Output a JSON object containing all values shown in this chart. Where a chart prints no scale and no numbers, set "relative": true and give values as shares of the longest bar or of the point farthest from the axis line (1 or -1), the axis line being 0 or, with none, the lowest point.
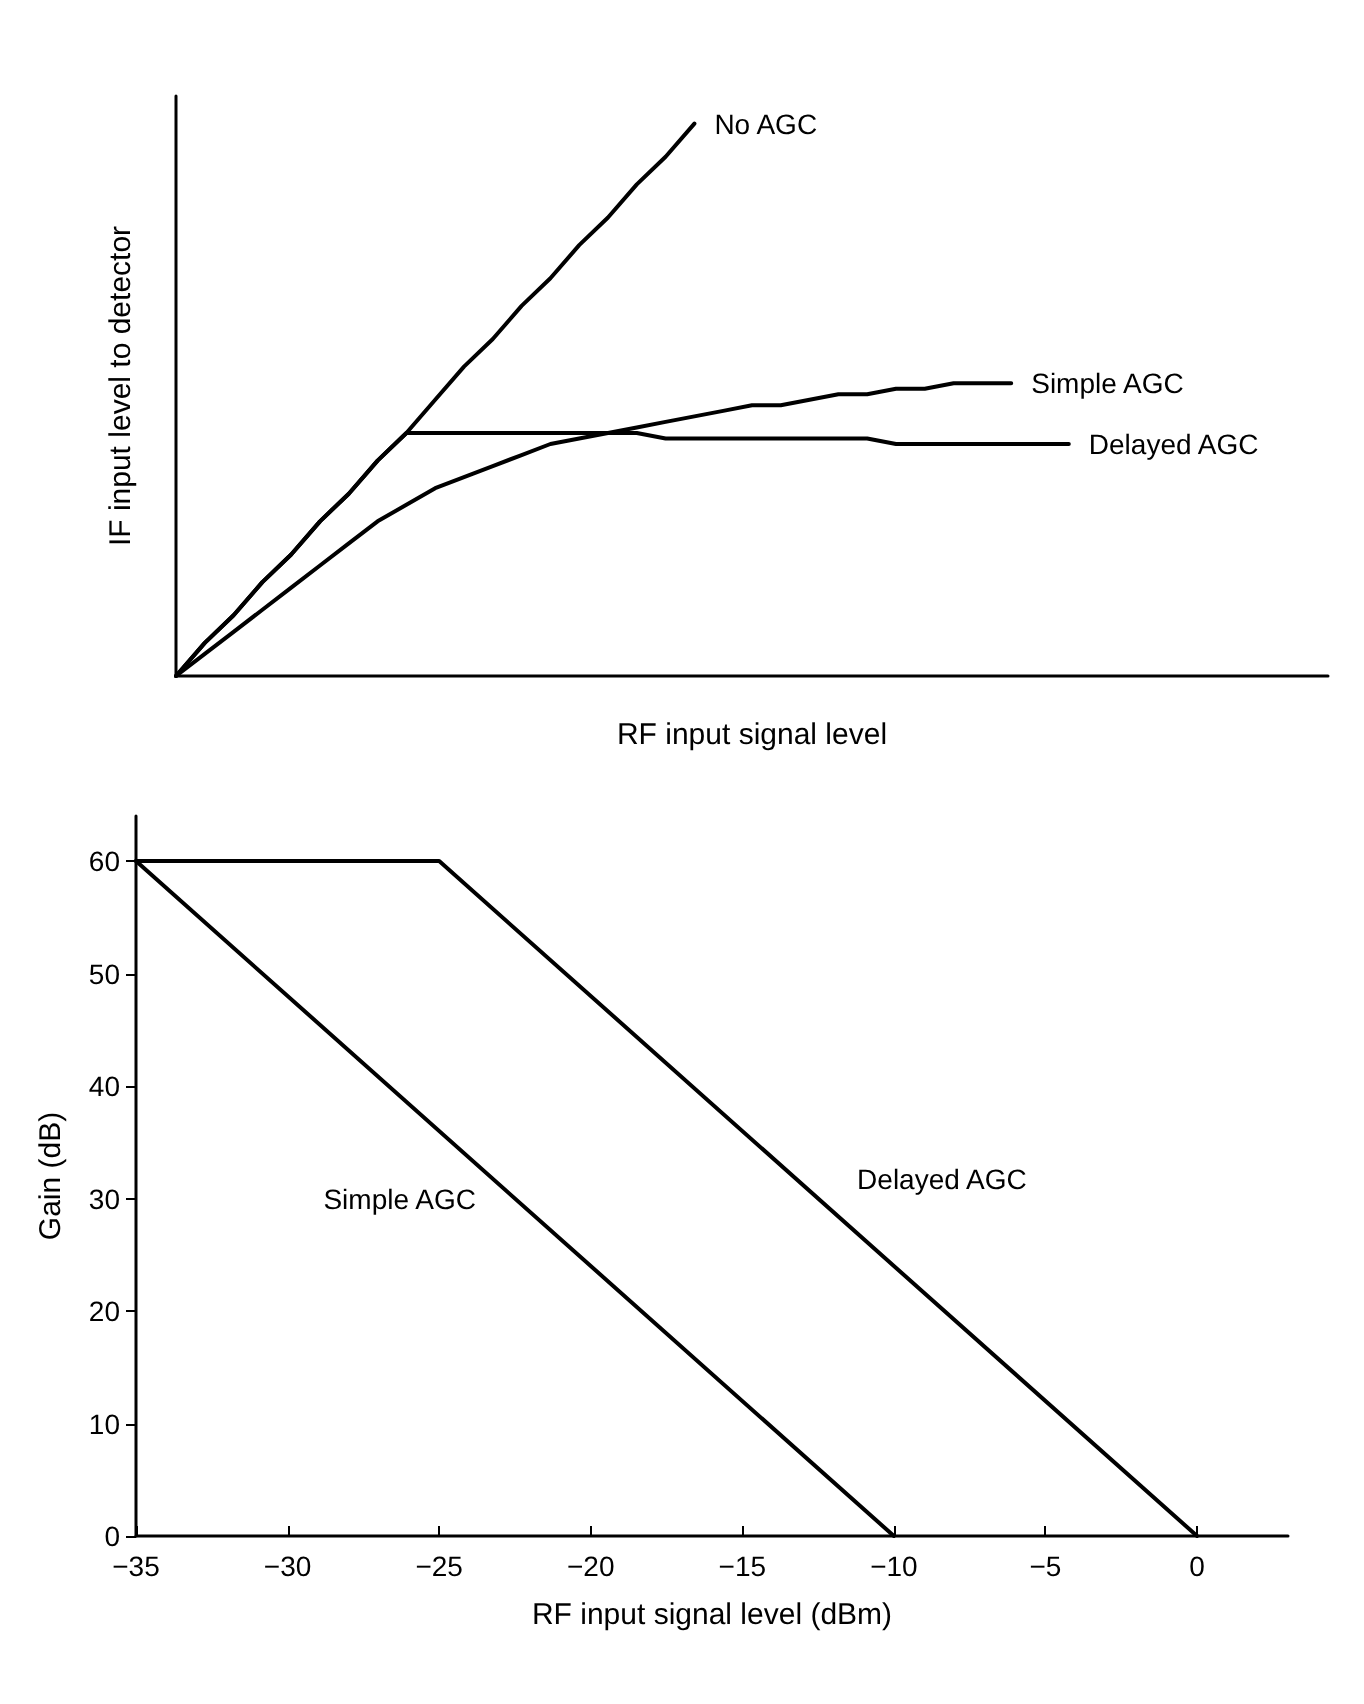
{
  "chart_data": [
    {
      "type": "line",
      "relative": true,
      "xlabel": "RF input signal level",
      "ylabel": "IF input level to detector",
      "grid": false,
      "legend": false,
      "marker": "none",
      "line_style": "solid",
      "categories": [
        null,
        null,
        null,
        null,
        null,
        null,
        null,
        null,
        null,
        null,
        null,
        null,
        null,
        null,
        null,
        null,
        null,
        null,
        null,
        null,
        null,
        null,
        null,
        null,
        null,
        null,
        null,
        null,
        null,
        null,
        null,
        null,
        null,
        null,
        null,
        null,
        null,
        null,
        null,
        null,
        null
      ],
      "series": [
        {
          "name": "No AGC",
          "color": "#000000",
          "values": [
            0,
            0.06,
            0.11,
            0.17,
            0.22,
            0.28,
            0.33,
            0.39,
            0.44,
            0.5,
            0.56,
            0.61,
            0.67,
            0.72,
            0.78,
            0.83,
            0.89,
            0.94,
            1,
            null,
            null,
            null,
            null,
            null,
            null,
            null,
            null,
            null,
            null,
            null,
            null,
            null,
            null,
            null,
            null,
            null,
            null,
            null,
            null,
            null,
            null
          ]
        },
        {
          "name": "Simple AGC",
          "color": "#000000",
          "values": [
            0,
            0.04,
            0.08,
            0.12,
            0.16,
            0.2,
            0.24,
            0.28,
            0.31,
            0.34,
            0.36,
            0.38,
            0.4,
            0.42,
            0.43,
            0.44,
            0.45,
            0.46,
            0.47,
            0.48,
            0.49,
            0.49,
            0.5,
            0.51,
            0.51,
            0.52,
            0.52,
            0.53,
            0.53,
            0.53,
            null,
            null,
            null,
            null,
            null,
            null,
            null,
            null,
            null,
            null,
            null
          ]
        },
        {
          "name": "Delayed AGC",
          "color": "#000000",
          "values": [
            0,
            0.06,
            0.11,
            0.17,
            0.22,
            0.28,
            0.33,
            0.39,
            0.44,
            0.44,
            0.44,
            0.44,
            0.44,
            0.44,
            0.44,
            0.44,
            0.44,
            0.43,
            0.43,
            0.43,
            0.43,
            0.43,
            0.43,
            0.43,
            0.43,
            0.42,
            0.42,
            0.42,
            0.42,
            0.42,
            0.42,
            0.42,
            null,
            null,
            null,
            null,
            null,
            null,
            null,
            null,
            null
          ]
        }
      ]
    },
    {
      "type": "line",
      "xlabel": "RF input signal level (dBm)",
      "ylabel": "Gain (dB)",
      "grid": false,
      "legend": false,
      "marker": "none",
      "line_style": "solid",
      "xlim": [
        -35,
        3
      ],
      "xticks": [
        -35,
        -30,
        -25,
        -20,
        -15,
        -10,
        -5,
        0
      ],
      "ylim": [
        0,
        64
      ],
      "yticks": [
        0,
        10,
        20,
        30,
        40,
        50,
        60
      ],
      "series": [
        {
          "name": "Simple AGC",
          "color": "#000000",
          "x": [
            -35,
            -10
          ],
          "values": [
            60,
            0
          ]
        },
        {
          "name": "Delayed AGC",
          "color": "#000000",
          "x": [
            -35,
            -25,
            0
          ],
          "values": [
            60,
            60,
            0
          ]
        }
      ]
    }
  ]
}
